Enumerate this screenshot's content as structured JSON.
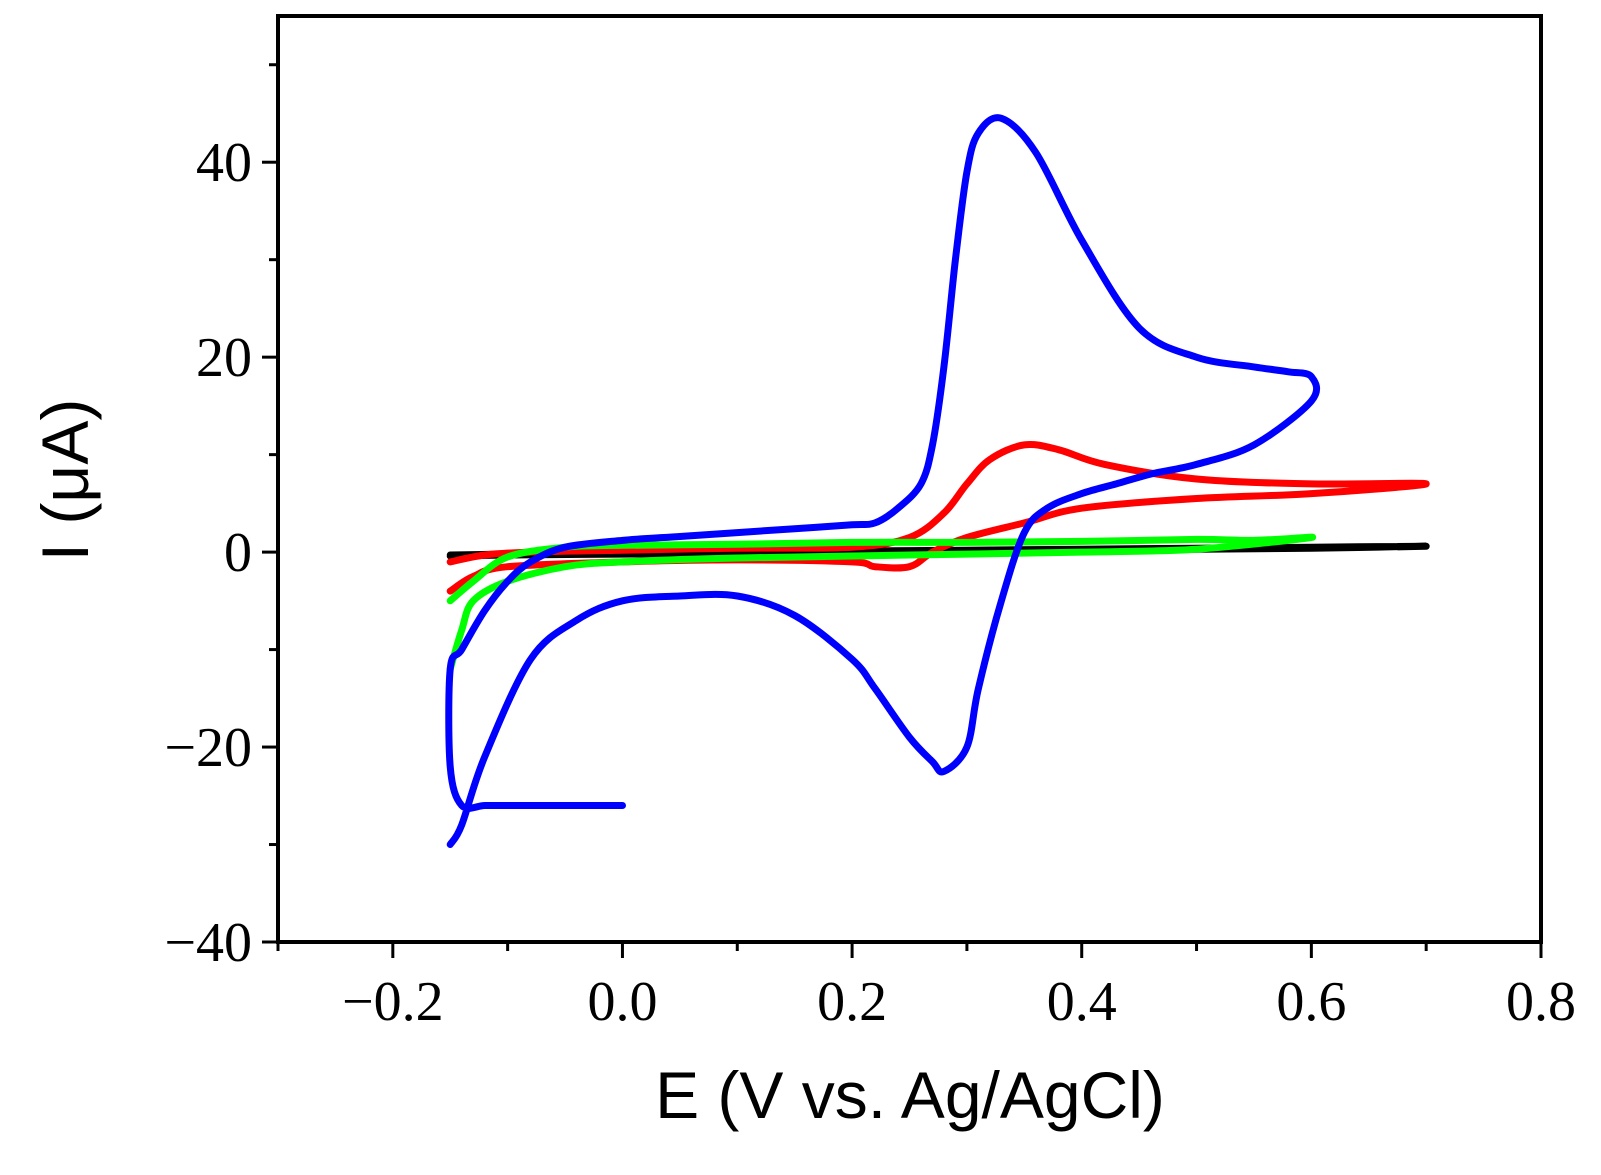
{
  "chart_data": {
    "type": "line",
    "title": "",
    "xlabel": "E (V vs. Ag/AgCl)",
    "ylabel": "I (μA)",
    "xlim": [
      -0.3,
      0.8
    ],
    "ylim": [
      -40,
      55
    ],
    "grid": false,
    "legend": "none",
    "x_ticks": [
      {
        "value": -0.2,
        "label": "−0.2"
      },
      {
        "value": 0.0,
        "label": "0.0"
      },
      {
        "value": 0.2,
        "label": "0.2"
      },
      {
        "value": 0.4,
        "label": "0.4"
      },
      {
        "value": 0.6,
        "label": "0.6"
      },
      {
        "value": 0.8,
        "label": "0.8"
      }
    ],
    "x_minor_ticks": [
      -0.3,
      -0.1,
      0.1,
      0.3,
      0.5,
      0.7
    ],
    "y_ticks": [
      {
        "value": -40,
        "label": "−40"
      },
      {
        "value": -20,
        "label": "−20"
      },
      {
        "value": 0,
        "label": "0"
      },
      {
        "value": 20,
        "label": "20"
      },
      {
        "value": 40,
        "label": "40"
      }
    ],
    "y_minor_ticks": [
      -30,
      -10,
      10,
      30,
      50
    ],
    "series": [
      {
        "name": "black",
        "color": "#000000",
        "x": [
          -0.15,
          -0.1,
          0.0,
          0.1,
          0.2,
          0.3,
          0.4,
          0.5,
          0.6,
          0.7,
          0.6,
          0.5,
          0.4,
          0.3,
          0.2,
          0.1,
          0.0,
          -0.1,
          -0.15
        ],
        "y": [
          -0.3,
          -0.2,
          -0.1,
          0.0,
          0.1,
          0.2,
          0.3,
          0.4,
          0.5,
          0.6,
          0.4,
          0.3,
          0.2,
          0.1,
          0.0,
          -0.1,
          -0.2,
          -0.3,
          -0.4
        ]
      },
      {
        "name": "red",
        "color": "#ff0000",
        "x": [
          -0.15,
          -0.12,
          -0.08,
          0.0,
          0.1,
          0.2,
          0.25,
          0.28,
          0.3,
          0.32,
          0.35,
          0.38,
          0.42,
          0.5,
          0.6,
          0.7,
          0.6,
          0.5,
          0.4,
          0.35,
          0.3,
          0.27,
          0.25,
          0.22,
          0.2,
          0.1,
          0.0,
          -0.1,
          -0.13,
          -0.15
        ],
        "y": [
          -1.0,
          -0.3,
          0.0,
          0.2,
          0.4,
          0.5,
          1.5,
          4.0,
          7.0,
          9.5,
          11.0,
          10.5,
          9.0,
          7.5,
          7.0,
          7.0,
          6.0,
          5.5,
          4.5,
          3.0,
          1.5,
          0.0,
          -1.5,
          -1.5,
          -1.0,
          -0.8,
          -1.0,
          -1.5,
          -2.5,
          -4.0
        ]
      },
      {
        "name": "green",
        "color": "#00ff00",
        "x": [
          -0.15,
          -0.14,
          -0.13,
          -0.1,
          -0.05,
          0.0,
          0.1,
          0.2,
          0.3,
          0.4,
          0.5,
          0.6,
          0.55,
          0.5,
          0.4,
          0.3,
          0.2,
          0.1,
          0.0,
          -0.05,
          -0.1,
          -0.13,
          -0.15
        ],
        "y": [
          -12.0,
          -8.0,
          -5.0,
          -3.0,
          -1.5,
          -1.0,
          -0.6,
          -0.4,
          -0.2,
          0.0,
          0.3,
          1.5,
          1.2,
          1.3,
          1.1,
          1.0,
          1.0,
          0.8,
          0.7,
          0.5,
          -0.5,
          -3.0,
          -5.0
        ]
      },
      {
        "name": "blue",
        "color": "#0000ff",
        "x": [
          -0.15,
          -0.14,
          -0.12,
          -0.08,
          -0.04,
          0.0,
          0.05,
          0.1,
          0.15,
          0.2,
          0.22,
          0.25,
          0.27,
          0.28,
          0.3,
          0.31,
          0.33,
          0.35,
          0.37,
          0.4,
          0.43,
          0.46,
          0.5,
          0.55,
          0.6,
          0.6,
          0.58,
          0.55,
          0.5,
          0.45,
          0.4,
          0.36,
          0.33,
          0.31,
          0.3,
          0.29,
          0.28,
          0.27,
          0.26,
          0.24,
          0.22,
          0.2,
          0.15,
          0.1,
          0.05,
          0.0,
          -0.05,
          -0.08,
          -0.1,
          -0.12,
          -0.14,
          -0.15,
          -0.15,
          -0.14,
          -0.12,
          -0.1,
          -0.07,
          -0.04,
          0.0
        ],
        "y": [
          -30.0,
          -28.0,
          -21.0,
          -11.0,
          -7.0,
          -5.0,
          -4.5,
          -4.5,
          -6.5,
          -11.0,
          -14.0,
          -19.0,
          -21.5,
          -22.5,
          -20.0,
          -14.0,
          -5.0,
          2.0,
          4.5,
          6.0,
          7.0,
          8.0,
          9.0,
          11.0,
          15.5,
          18.0,
          18.5,
          19.0,
          20.0,
          23.0,
          32.0,
          41.0,
          44.5,
          43.0,
          39.0,
          30.0,
          19.0,
          11.0,
          7.0,
          4.5,
          3.0,
          2.8,
          2.4,
          2.0,
          1.6,
          1.2,
          0.5,
          -1.0,
          -3.0,
          -6.0,
          -10.0,
          -12.0,
          -22.0,
          -26.0,
          -26.0,
          -26.0,
          -26.0,
          -26.0,
          -26.0
        ]
      }
    ]
  }
}
